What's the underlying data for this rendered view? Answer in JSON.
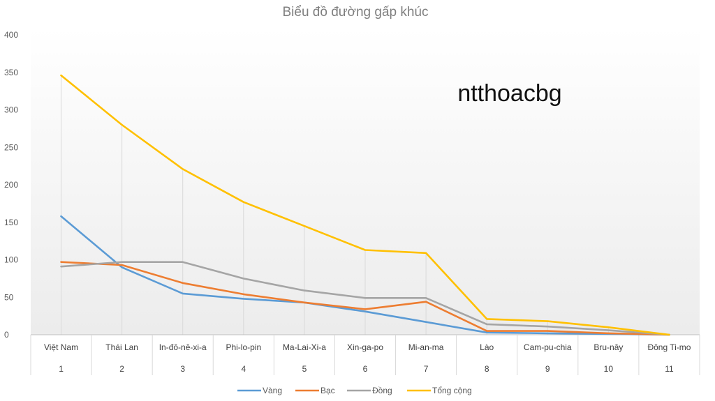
{
  "chart_data": {
    "type": "line",
    "title": "Biểu đồ đường gấp khúc",
    "xlabel": "",
    "ylabel": "",
    "ylim": [
      0,
      400
    ],
    "yticks": [
      0,
      50,
      100,
      150,
      200,
      250,
      300,
      350,
      400
    ],
    "categories": [
      "Việt Nam",
      "Thái Lan",
      "In-đô-nê-xi-a",
      "Phi-lo-pin",
      "Ma-Lai-Xi-a",
      "Xin-ga-po",
      "Mi-an-ma",
      "Lào",
      "Cam-pu-chia",
      "Bru-nây",
      "Đông Ti-mo"
    ],
    "category_index": [
      "1",
      "2",
      "3",
      "4",
      "5",
      "6",
      "7",
      "8",
      "9",
      "10",
      "11"
    ],
    "series": [
      {
        "name": "Vàng",
        "color": "#5b9bd5",
        "values": [
          158,
          90,
          55,
          48,
          43,
          31,
          17,
          3,
          2,
          1,
          0
        ]
      },
      {
        "name": "Bạc",
        "color": "#ed7d31",
        "values": [
          97,
          93,
          69,
          54,
          43,
          34,
          44,
          5,
          5,
          2,
          0
        ]
      },
      {
        "name": "Đồng",
        "color": "#a5a5a5",
        "values": [
          91,
          97,
          97,
          75,
          59,
          49,
          49,
          14,
          11,
          6,
          0
        ]
      },
      {
        "name": "Tổng cộng",
        "color": "#ffc000",
        "values": [
          346,
          280,
          221,
          177,
          145,
          113,
          109,
          21,
          18,
          10,
          0
        ]
      }
    ],
    "grid": "vertical",
    "legend_position": "bottom",
    "annotation": "ntthoacbg"
  }
}
